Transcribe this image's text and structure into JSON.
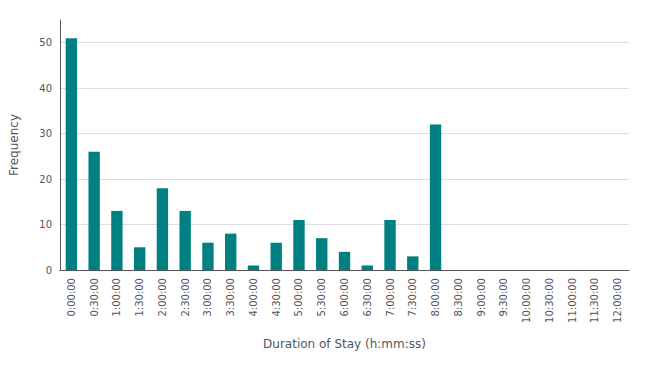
{
  "chart_data": {
    "type": "bar",
    "xlabel": "Duration of Stay (h:mm:ss)",
    "ylabel": "Frequency",
    "categories": [
      "0:00:00",
      "0:30:00",
      "1:00:00",
      "1:30:00",
      "2:00:00",
      "2:30:00",
      "3:00:00",
      "3:30:00",
      "4:00:00",
      "4:30:00",
      "5:00:00",
      "5:30:00",
      "6:00:00",
      "6:30:00",
      "7:00:00",
      "7:30:00",
      "8:00:00",
      "8:30:00",
      "9:00:00",
      "9:30:00",
      "10:00:00",
      "10:30:00",
      "11:00:00",
      "11:30:00",
      "12:00:00"
    ],
    "values": [
      51,
      26,
      13,
      5,
      18,
      13,
      6,
      8,
      1,
      6,
      11,
      7,
      4,
      1,
      11,
      3,
      32,
      0,
      0,
      0,
      0,
      0,
      0,
      0,
      0
    ],
    "color": "#008080",
    "ylim": [
      0,
      55
    ],
    "yticks": [
      0,
      10,
      20,
      30,
      40,
      50
    ],
    "grid": true
  }
}
